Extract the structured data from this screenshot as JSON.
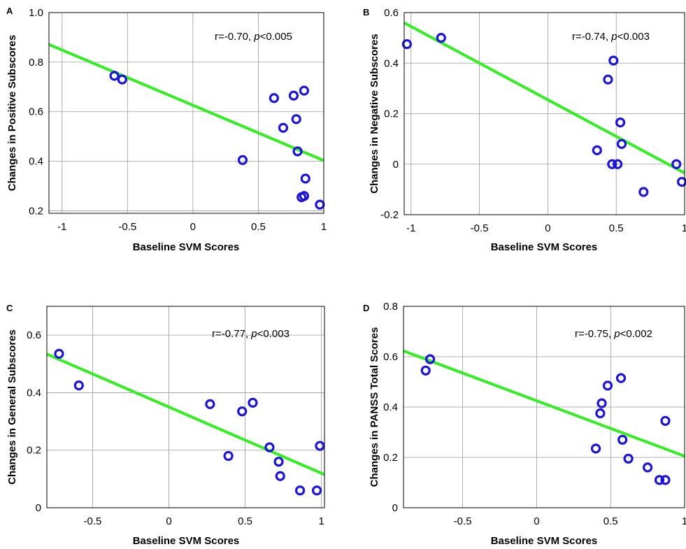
{
  "chart_data": [
    {
      "type": "scatter",
      "panel": "A",
      "annotation_r": "r=-0.70, ",
      "annotation_p_symbol": "p",
      "annotation_p_value": "<0.005",
      "xlabel": "Baseline SVM Scores",
      "ylabel": "Changes in Positive Subscores",
      "xlim": [
        -1.1,
        1.0
      ],
      "ylim": [
        0.19,
        1.0
      ],
      "xticks": [
        -1,
        -0.5,
        0,
        0.5,
        1
      ],
      "xtick_labels": [
        "-1",
        "-0.5",
        "0",
        "0.5",
        "1"
      ],
      "yticks": [
        0.2,
        0.4,
        0.6,
        0.8,
        1.0
      ],
      "ytick_labels": [
        "0.2",
        "0.4",
        "0.6",
        "0.8",
        "1.0"
      ],
      "grid": true,
      "fit_line": {
        "intercept": 0.626,
        "slope": -0.223
      },
      "x": [
        -0.6,
        -0.54,
        0.38,
        0.62,
        0.69,
        0.77,
        0.79,
        0.8,
        0.85,
        0.83,
        0.85,
        0.86,
        0.97
      ],
      "y": [
        0.745,
        0.73,
        0.405,
        0.655,
        0.535,
        0.665,
        0.57,
        0.44,
        0.685,
        0.255,
        0.26,
        0.33,
        0.225
      ]
    },
    {
      "type": "scatter",
      "panel": "B",
      "annotation_r": "r=-0.74, ",
      "annotation_p_symbol": "p",
      "annotation_p_value": "<0.003",
      "xlabel": "Baseline SVM Scores",
      "ylabel": "Changes in Negative Subscores",
      "xlim": [
        -1.05,
        1.0
      ],
      "ylim": [
        -0.2,
        0.6
      ],
      "xticks": [
        -1,
        -0.5,
        0,
        0.5,
        1
      ],
      "xtick_labels": [
        "-1",
        "-0.5",
        "0",
        "0.5",
        "1"
      ],
      "yticks": [
        -0.2,
        0,
        0.2,
        0.4,
        0.6
      ],
      "ytick_labels": [
        "-0.2",
        "0",
        "0.2",
        "0.4",
        "0.6"
      ],
      "grid": true,
      "fit_line": {
        "intercept": 0.255,
        "slope": -0.29
      },
      "x": [
        -1.03,
        -0.78,
        0.36,
        0.44,
        0.47,
        0.48,
        0.51,
        0.53,
        0.54,
        0.7,
        0.94,
        0.98
      ],
      "y": [
        0.475,
        0.5,
        0.055,
        0.335,
        0.0,
        0.41,
        0.0,
        0.165,
        0.08,
        -0.11,
        0.0,
        -0.07
      ]
    },
    {
      "type": "scatter",
      "panel": "C",
      "annotation_r": "r=-0.77, ",
      "annotation_p_symbol": "p",
      "annotation_p_value": "<0.003",
      "xlabel": "Baseline SVM Scores",
      "ylabel": "Changes in General Subscores",
      "xlim": [
        -0.8,
        1.02
      ],
      "ylim": [
        0.0,
        0.7
      ],
      "xticks": [
        -0.5,
        0,
        0.5,
        1
      ],
      "xtick_labels": [
        "-0.5",
        "0",
        "0.5",
        "1"
      ],
      "yticks": [
        0,
        0.2,
        0.4,
        0.6
      ],
      "ytick_labels": [
        "0",
        "0.2",
        "0.4",
        "0.6"
      ],
      "grid": true,
      "fit_line": {
        "intercept": 0.35,
        "slope": -0.23
      },
      "x": [
        -0.72,
        -0.59,
        0.27,
        0.39,
        0.48,
        0.55,
        0.66,
        0.72,
        0.73,
        0.86,
        0.97,
        0.99
      ],
      "y": [
        0.535,
        0.425,
        0.36,
        0.18,
        0.335,
        0.365,
        0.21,
        0.16,
        0.11,
        0.06,
        0.06,
        0.215
      ]
    },
    {
      "type": "scatter",
      "panel": "D",
      "annotation_r": "r=-0.75, ",
      "annotation_p_symbol": "p",
      "annotation_p_value": "<0.002",
      "xlabel": "Baseline SVM Scores",
      "ylabel": "Changes in PANSS Total Scores",
      "xlim": [
        -0.9,
        1.0
      ],
      "ylim": [
        0.0,
        0.8
      ],
      "xticks": [
        -0.5,
        0,
        0.5,
        1
      ],
      "xtick_labels": [
        "-0.5",
        "0",
        "0.5",
        "1"
      ],
      "yticks": [
        0,
        0.2,
        0.4,
        0.6,
        0.8
      ],
      "ytick_labels": [
        "0",
        "0.2",
        "0.4",
        "0.6",
        "0.8"
      ],
      "grid": true,
      "fit_line": {
        "intercept": 0.425,
        "slope": -0.22
      },
      "x": [
        -0.75,
        -0.72,
        0.4,
        0.43,
        0.44,
        0.48,
        0.57,
        0.58,
        0.62,
        0.75,
        0.83,
        0.87,
        0.87
      ],
      "y": [
        0.545,
        0.59,
        0.235,
        0.375,
        0.415,
        0.485,
        0.515,
        0.27,
        0.195,
        0.16,
        0.11,
        0.11,
        0.345
      ]
    }
  ]
}
